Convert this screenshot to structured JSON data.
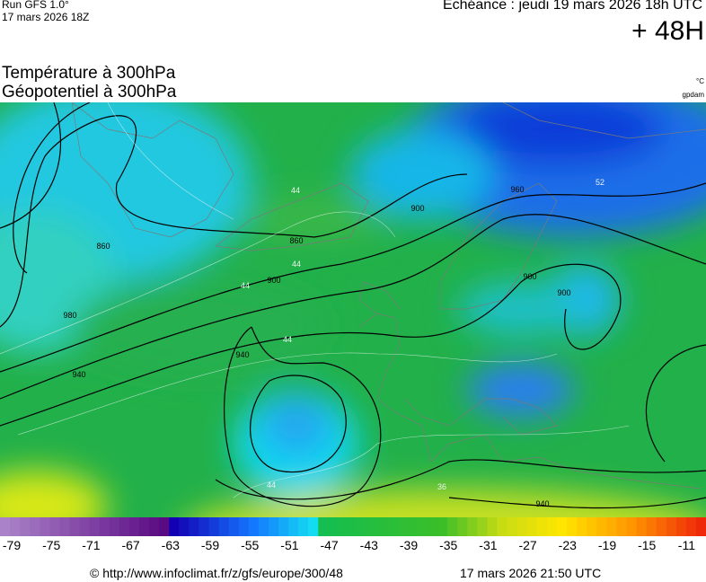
{
  "header": {
    "run": "Run GFS 1.0°",
    "run_date": "17 mars 2026 18Z",
    "valid": "Echéance : jeudi 19 mars 2026 18h UTC",
    "lead": "+ 48H"
  },
  "titles": [
    "Température à 300hPa",
    "Géopotentiel à 300hPa"
  ],
  "units": [
    "°C",
    "gpdam"
  ],
  "map": {
    "contour_labels": [
      "860",
      "860",
      "900",
      "900",
      "900",
      "900",
      "940",
      "940",
      "940",
      "960",
      "980",
      "44",
      "44",
      "44",
      "44",
      "44",
      "36",
      "52"
    ]
  },
  "colorbar": {
    "ticks": [
      -79,
      -75,
      -71,
      -67,
      -63,
      -59,
      -55,
      -51,
      -47,
      -43,
      -39,
      -35,
      -31,
      -27,
      -23,
      -19,
      -15,
      -11
    ]
  },
  "footer": {
    "source": "© http://www.infoclimat.fr/z/gfs/europe/300/48",
    "timestamp": "17 mars 2026 21:50 UTC"
  }
}
